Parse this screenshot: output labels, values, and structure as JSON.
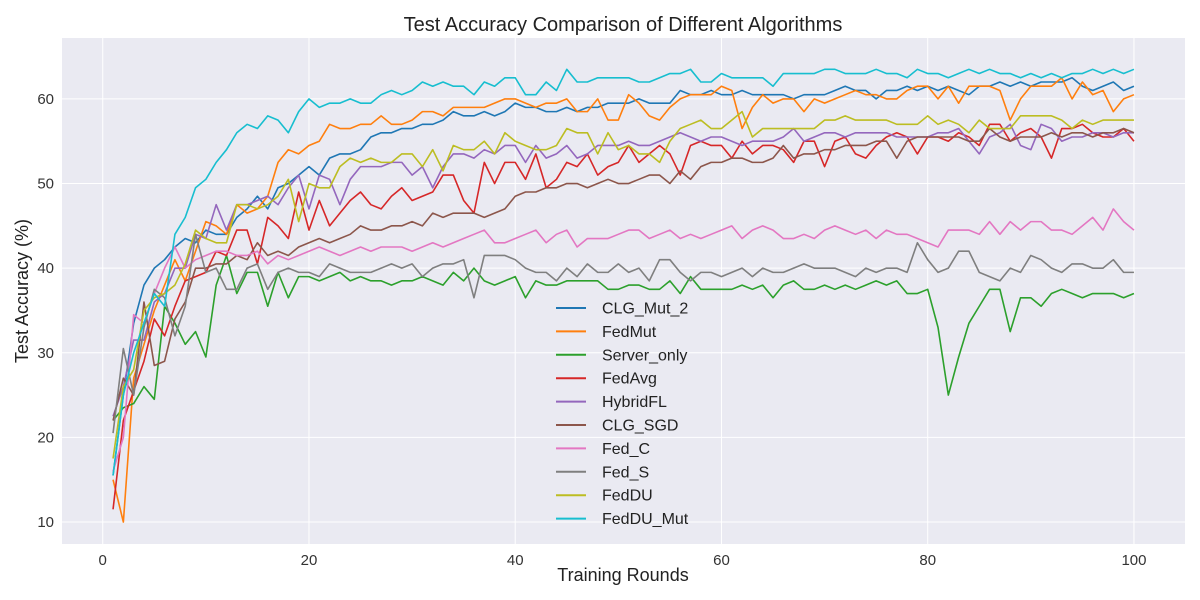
{
  "chart_data": {
    "type": "line",
    "title": "Test Accuracy Comparison of Different Algorithms",
    "xlabel": "Training Rounds",
    "ylabel": "Test Accuracy (%)",
    "xlim": [
      -3.95,
      104.95
    ],
    "ylim": [
      7.4,
      67.2
    ],
    "xticks": [
      0,
      20,
      40,
      60,
      80,
      100
    ],
    "yticks": [
      10,
      20,
      30,
      40,
      50,
      60
    ],
    "grid": true,
    "background": "#eaeaf2",
    "legend_position": "lower-center",
    "series": [
      {
        "name": "CLG_Mut_2",
        "color": "#1f77b4",
        "values": [
          15.5,
          25.0,
          33.5,
          38.0,
          40.0,
          41.0,
          42.5,
          43.5,
          43.0,
          44.5,
          44.0,
          44.0,
          46.0,
          47.0,
          48.5,
          47.0,
          49.5,
          50.0,
          51.0,
          52.0,
          51.0,
          53.0,
          53.5,
          53.5,
          54.0,
          55.5,
          56.0,
          56.0,
          56.5,
          56.5,
          57.0,
          57.0,
          57.5,
          58.5,
          58.0,
          58.0,
          58.5,
          58.0,
          58.5,
          59.5,
          59.0,
          59.0,
          58.5,
          58.5,
          59.0,
          58.5,
          59.0,
          59.0,
          59.5,
          59.5,
          59.5,
          60.0,
          59.5,
          59.5,
          59.5,
          61.0,
          60.5,
          60.5,
          61.0,
          60.5,
          60.5,
          61.0,
          60.5,
          60.5,
          60.5,
          60.5,
          60.0,
          60.5,
          60.5,
          60.5,
          61.0,
          61.5,
          61.0,
          61.0,
          60.0,
          61.0,
          61.0,
          61.5,
          61.0,
          61.5,
          61.0,
          61.5,
          61.0,
          60.5,
          61.5,
          61.5,
          62.0,
          61.5,
          62.0,
          61.5,
          62.0,
          62.0,
          62.0,
          62.5,
          61.5,
          61.0,
          61.5,
          62.0,
          61.0,
          61.5
        ]
      },
      {
        "name": "FedMut",
        "color": "#ff7f0e",
        "values": [
          15.0,
          10.0,
          27.0,
          31.0,
          35.0,
          38.0,
          41.0,
          38.5,
          42.0,
          45.5,
          45.0,
          44.0,
          47.5,
          46.5,
          47.0,
          48.5,
          52.5,
          54.0,
          53.5,
          54.5,
          55.0,
          57.0,
          56.5,
          56.5,
          57.0,
          57.0,
          58.0,
          57.0,
          57.0,
          57.5,
          58.5,
          58.5,
          58.0,
          59.0,
          59.0,
          59.0,
          59.0,
          59.5,
          60.0,
          60.0,
          59.5,
          59.0,
          59.5,
          59.5,
          60.0,
          58.5,
          58.5,
          60.0,
          57.5,
          57.5,
          60.5,
          59.5,
          58.0,
          57.5,
          59.0,
          60.0,
          60.5,
          60.5,
          60.5,
          61.5,
          61.0,
          56.5,
          59.0,
          60.5,
          59.5,
          60.0,
          60.0,
          58.5,
          60.0,
          59.5,
          60.0,
          60.5,
          61.0,
          60.5,
          60.5,
          60.0,
          60.0,
          61.0,
          61.5,
          61.5,
          60.0,
          61.5,
          59.5,
          61.5,
          61.5,
          61.5,
          61.0,
          57.5,
          60.0,
          61.5,
          61.5,
          61.5,
          62.5,
          60.0,
          62.0,
          60.5,
          61.0,
          58.5,
          60.0,
          60.5
        ]
      },
      {
        "name": "Server_only",
        "color": "#2ca02c",
        "values": [
          22.0,
          23.5,
          24.0,
          26.0,
          24.5,
          35.5,
          33.5,
          31.0,
          32.5,
          29.5,
          38.0,
          41.5,
          37.0,
          39.5,
          39.5,
          35.5,
          39.5,
          36.5,
          39.0,
          39.0,
          38.5,
          39.0,
          39.5,
          38.5,
          39.0,
          38.5,
          38.5,
          38.0,
          38.5,
          38.5,
          39.0,
          38.5,
          38.0,
          39.5,
          38.5,
          40.0,
          38.5,
          38.0,
          38.5,
          39.0,
          36.5,
          38.5,
          38.0,
          38.0,
          38.5,
          38.5,
          38.5,
          38.5,
          37.5,
          37.5,
          38.0,
          38.0,
          37.5,
          37.5,
          38.5,
          37.0,
          39.0,
          37.5,
          37.5,
          37.5,
          37.5,
          38.0,
          37.5,
          38.0,
          36.5,
          38.0,
          38.5,
          37.5,
          37.5,
          38.0,
          37.5,
          38.0,
          37.5,
          38.0,
          38.5,
          38.0,
          38.5,
          37.0,
          37.0,
          37.5,
          33.0,
          25.0,
          29.5,
          33.5,
          35.5,
          37.5,
          37.5,
          32.5,
          36.5,
          36.5,
          35.5,
          37.0,
          37.5,
          37.0,
          36.5,
          37.0,
          37.0,
          37.0,
          36.5,
          37.0
        ]
      },
      {
        "name": "FedAvg",
        "color": "#d62728",
        "values": [
          11.5,
          22.0,
          25.5,
          29.0,
          34.0,
          32.0,
          35.5,
          38.5,
          39.0,
          39.5,
          42.0,
          41.5,
          44.5,
          44.5,
          40.5,
          46.0,
          45.0,
          43.5,
          49.0,
          44.5,
          48.0,
          45.0,
          46.5,
          48.0,
          49.0,
          47.5,
          47.0,
          48.5,
          49.5,
          48.0,
          48.5,
          49.0,
          51.0,
          51.0,
          48.0,
          46.5,
          52.5,
          50.0,
          52.5,
          52.5,
          50.5,
          53.5,
          49.5,
          50.5,
          52.5,
          52.0,
          53.5,
          51.0,
          52.0,
          52.5,
          54.5,
          52.5,
          53.5,
          54.5,
          53.5,
          51.0,
          54.5,
          55.0,
          54.5,
          54.5,
          53.0,
          55.0,
          53.5,
          54.5,
          54.5,
          54.0,
          52.5,
          55.0,
          55.0,
          52.0,
          55.0,
          55.5,
          53.5,
          53.0,
          54.5,
          55.5,
          56.0,
          55.5,
          53.5,
          55.5,
          55.5,
          55.0,
          56.0,
          55.5,
          54.5,
          57.0,
          57.0,
          55.0,
          56.0,
          56.5,
          55.5,
          53.0,
          56.5,
          56.5,
          57.0,
          56.0,
          55.5,
          55.5,
          56.5,
          55.0
        ]
      },
      {
        "name": "HybridFL",
        "color": "#9467bd",
        "values": [
          22.5,
          26.0,
          31.5,
          31.5,
          36.0,
          37.0,
          40.0,
          40.0,
          44.0,
          43.5,
          47.5,
          44.5,
          47.5,
          47.5,
          48.0,
          48.5,
          47.5,
          49.5,
          51.0,
          47.0,
          51.0,
          50.5,
          47.5,
          50.5,
          52.0,
          52.0,
          52.0,
          52.5,
          52.5,
          51.0,
          52.0,
          49.5,
          52.0,
          53.5,
          53.5,
          53.0,
          54.0,
          53.5,
          54.5,
          54.5,
          52.5,
          54.5,
          53.0,
          53.5,
          54.5,
          53.0,
          53.5,
          54.5,
          54.5,
          54.5,
          55.0,
          54.5,
          54.5,
          55.0,
          55.5,
          56.0,
          55.5,
          55.0,
          55.5,
          55.5,
          55.0,
          54.5,
          55.0,
          55.0,
          55.0,
          55.5,
          56.5,
          55.0,
          55.5,
          56.0,
          56.0,
          55.5,
          56.0,
          56.0,
          56.0,
          56.0,
          55.5,
          55.5,
          55.5,
          55.5,
          56.0,
          56.0,
          56.5,
          55.0,
          53.5,
          55.5,
          56.0,
          57.0,
          54.5,
          54.0,
          57.0,
          56.5,
          55.0,
          55.5,
          55.5,
          56.0,
          56.0,
          55.5,
          56.0,
          56.0
        ]
      },
      {
        "name": "CLG_SGD",
        "color": "#8c564b",
        "values": [
          22.0,
          27.0,
          25.0,
          36.0,
          28.5,
          29.0,
          34.0,
          36.0,
          40.0,
          40.0,
          40.5,
          40.5,
          41.5,
          41.0,
          43.0,
          41.5,
          42.0,
          41.5,
          42.5,
          43.0,
          43.5,
          43.0,
          43.5,
          44.0,
          45.0,
          44.5,
          44.5,
          45.0,
          45.0,
          45.5,
          45.0,
          46.5,
          46.0,
          46.5,
          46.5,
          46.5,
          46.0,
          46.5,
          47.0,
          48.5,
          49.0,
          49.0,
          49.5,
          49.5,
          50.0,
          50.0,
          49.5,
          50.0,
          50.5,
          50.0,
          50.0,
          50.5,
          51.0,
          51.0,
          50.0,
          51.5,
          50.5,
          52.0,
          52.5,
          52.5,
          53.0,
          53.0,
          52.5,
          52.5,
          53.0,
          54.5,
          53.0,
          53.5,
          53.5,
          54.0,
          54.0,
          54.5,
          54.5,
          54.5,
          55.0,
          55.0,
          53.0,
          55.0,
          55.5,
          55.5,
          55.5,
          55.5,
          55.5,
          55.0,
          55.0,
          56.5,
          55.5,
          55.0,
          55.5,
          55.5,
          55.5,
          56.0,
          55.5,
          56.0,
          56.0,
          55.5,
          56.0,
          56.0,
          56.5,
          56.0
        ]
      },
      {
        "name": "Fed_C",
        "color": "#e377c2",
        "values": [
          16.0,
          20.0,
          34.5,
          33.5,
          37.0,
          40.0,
          42.5,
          40.0,
          41.0,
          41.5,
          42.0,
          42.0,
          41.5,
          41.5,
          42.0,
          40.5,
          41.5,
          41.0,
          41.5,
          42.0,
          42.5,
          42.0,
          41.5,
          42.0,
          42.5,
          42.0,
          42.5,
          42.5,
          42.5,
          42.0,
          42.5,
          43.0,
          42.5,
          43.0,
          43.5,
          44.0,
          44.5,
          43.0,
          43.0,
          43.5,
          44.0,
          44.5,
          43.0,
          44.0,
          44.5,
          42.5,
          43.5,
          43.5,
          43.5,
          44.0,
          44.5,
          44.5,
          43.5,
          44.0,
          44.5,
          43.5,
          44.0,
          43.5,
          44.0,
          44.5,
          45.0,
          43.5,
          44.5,
          45.0,
          44.5,
          43.5,
          43.5,
          44.0,
          43.5,
          44.5,
          45.0,
          44.5,
          44.0,
          44.5,
          43.5,
          44.5,
          44.0,
          44.0,
          43.5,
          43.0,
          42.5,
          44.5,
          44.5,
          44.5,
          44.0,
          45.5,
          44.0,
          45.5,
          44.5,
          45.5,
          45.5,
          44.5,
          44.5,
          44.0,
          45.0,
          46.0,
          44.5,
          47.0,
          45.5,
          44.5
        ]
      },
      {
        "name": "Fed_S",
        "color": "#7f7f7f",
        "values": [
          20.5,
          30.5,
          25.0,
          33.0,
          37.5,
          36.5,
          32.0,
          35.5,
          44.0,
          39.5,
          40.0,
          37.5,
          37.5,
          40.0,
          40.5,
          37.5,
          39.5,
          40.0,
          39.5,
          39.5,
          39.0,
          40.5,
          40.0,
          39.5,
          39.5,
          39.5,
          40.0,
          40.5,
          40.0,
          40.5,
          39.0,
          40.0,
          40.5,
          40.5,
          41.0,
          36.5,
          41.5,
          41.5,
          41.5,
          41.0,
          40.0,
          39.5,
          39.5,
          38.5,
          40.0,
          39.0,
          40.5,
          39.5,
          39.5,
          40.5,
          39.5,
          40.0,
          38.5,
          41.0,
          41.0,
          39.5,
          38.5,
          39.5,
          39.5,
          39.0,
          39.5,
          40.0,
          39.0,
          40.0,
          39.5,
          39.5,
          40.0,
          40.5,
          40.0,
          40.0,
          40.0,
          39.5,
          39.0,
          40.0,
          39.5,
          40.0,
          40.0,
          39.5,
          43.0,
          41.0,
          39.5,
          40.0,
          42.0,
          42.0,
          39.5,
          39.0,
          38.5,
          40.0,
          39.5,
          41.5,
          41.0,
          40.0,
          39.5,
          40.5,
          40.5,
          40.0,
          40.0,
          41.0,
          39.5,
          39.5
        ]
      },
      {
        "name": "FedDU",
        "color": "#bcbd22",
        "values": [
          17.5,
          26.0,
          28.0,
          35.0,
          36.5,
          37.0,
          38.0,
          40.5,
          44.5,
          43.5,
          43.0,
          43.0,
          47.5,
          47.5,
          47.0,
          47.5,
          48.5,
          50.5,
          45.5,
          50.0,
          49.5,
          49.5,
          52.0,
          53.0,
          52.5,
          53.0,
          52.5,
          52.5,
          53.5,
          53.5,
          52.0,
          54.0,
          51.5,
          54.5,
          54.0,
          54.0,
          55.0,
          53.5,
          56.0,
          55.0,
          54.5,
          54.0,
          54.0,
          54.5,
          56.5,
          56.0,
          56.0,
          53.5,
          56.0,
          54.0,
          54.5,
          53.5,
          53.5,
          52.5,
          55.0,
          56.5,
          57.0,
          57.5,
          56.5,
          56.5,
          57.5,
          58.5,
          55.5,
          56.5,
          56.5,
          56.5,
          56.5,
          56.5,
          56.5,
          57.5,
          57.5,
          58.0,
          57.5,
          57.5,
          57.5,
          57.5,
          57.0,
          57.0,
          57.0,
          58.0,
          57.0,
          57.5,
          57.0,
          56.0,
          57.5,
          56.5,
          56.5,
          56.5,
          58.0,
          58.0,
          58.0,
          58.0,
          57.5,
          56.5,
          57.5,
          57.0,
          57.5,
          57.5,
          57.5,
          57.5
        ]
      },
      {
        "name": "FedDU_Mut",
        "color": "#17becf",
        "values": [
          15.5,
          25.0,
          30.0,
          33.5,
          37.0,
          35.5,
          44.0,
          46.0,
          49.5,
          50.5,
          52.5,
          54.0,
          56.0,
          57.0,
          56.5,
          58.0,
          57.5,
          56.0,
          58.5,
          60.0,
          59.0,
          59.5,
          59.5,
          60.0,
          59.5,
          59.5,
          60.5,
          61.0,
          60.5,
          61.0,
          62.0,
          61.5,
          62.0,
          61.5,
          61.5,
          60.5,
          62.0,
          61.5,
          62.5,
          62.5,
          60.5,
          60.5,
          62.0,
          61.0,
          63.5,
          62.0,
          62.0,
          62.5,
          62.5,
          62.5,
          62.5,
          62.0,
          62.0,
          62.5,
          63.0,
          63.0,
          63.5,
          62.0,
          62.0,
          63.0,
          62.5,
          62.5,
          62.5,
          62.5,
          61.5,
          63.0,
          63.0,
          63.0,
          63.0,
          63.5,
          63.5,
          63.0,
          63.0,
          63.0,
          63.5,
          63.0,
          63.0,
          62.5,
          63.5,
          63.0,
          63.0,
          62.5,
          63.0,
          63.5,
          63.0,
          63.5,
          63.0,
          63.0,
          62.5,
          63.0,
          62.5,
          63.0,
          62.5,
          63.0,
          63.0,
          63.5,
          63.0,
          63.5,
          63.0,
          63.5
        ]
      }
    ]
  }
}
